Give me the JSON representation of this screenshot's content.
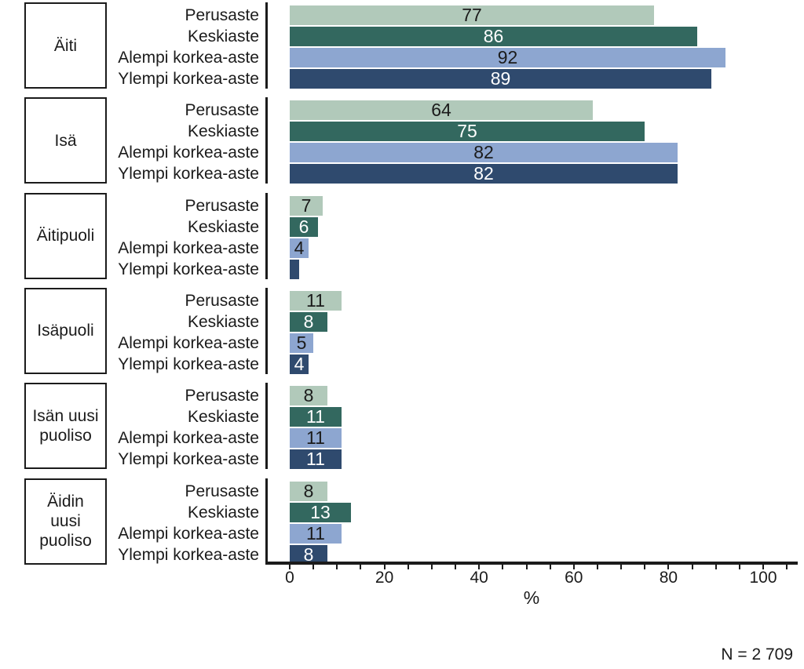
{
  "chart_data": {
    "type": "bar",
    "orientation": "horizontal",
    "title": "",
    "xlabel": "%",
    "note": "N = 2 709",
    "xlim": [
      0,
      105
    ],
    "x_major_ticks": [
      0,
      20,
      40,
      60,
      80,
      100
    ],
    "x_minor_tick_step": 5,
    "grid": false,
    "axis_color": "#1b1b1b",
    "series": [
      {
        "name": "Perusaste",
        "color": "#b1c9ba",
        "label_color": "#1b1b1b"
      },
      {
        "name": "Keskiaste",
        "color": "#33685f",
        "label_color": "#ffffff"
      },
      {
        "name": "Alempi korkea-aste",
        "color": "#8da6d0",
        "label_color": "#1b1b1b"
      },
      {
        "name": "Ylempi korkea-aste",
        "color": "#2f4a6e",
        "label_color": "#ffffff"
      }
    ],
    "groups": [
      {
        "label": "Äiti",
        "values": [
          77,
          86,
          92,
          89
        ],
        "value_labels": [
          "77",
          "86",
          "92",
          "89"
        ]
      },
      {
        "label": "Isä",
        "values": [
          64,
          75,
          82,
          82
        ],
        "value_labels": [
          "64",
          "75",
          "82",
          "82"
        ]
      },
      {
        "label": "Äitipuoli",
        "values": [
          7,
          6,
          4,
          2
        ],
        "value_labels": [
          "7",
          "6",
          "4",
          ""
        ]
      },
      {
        "label": "Isäpuoli",
        "values": [
          11,
          8,
          5,
          4
        ],
        "value_labels": [
          "11",
          "8",
          "5",
          "4"
        ]
      },
      {
        "label": "Isän uusi\npuoliso",
        "values": [
          8,
          11,
          11,
          11
        ],
        "value_labels": [
          "8",
          "11",
          "11",
          "11"
        ]
      },
      {
        "label": "Äidin\nuusi\npuoliso",
        "values": [
          8,
          13,
          11,
          8
        ],
        "value_labels": [
          "8",
          "13",
          "11",
          "8"
        ]
      }
    ]
  }
}
